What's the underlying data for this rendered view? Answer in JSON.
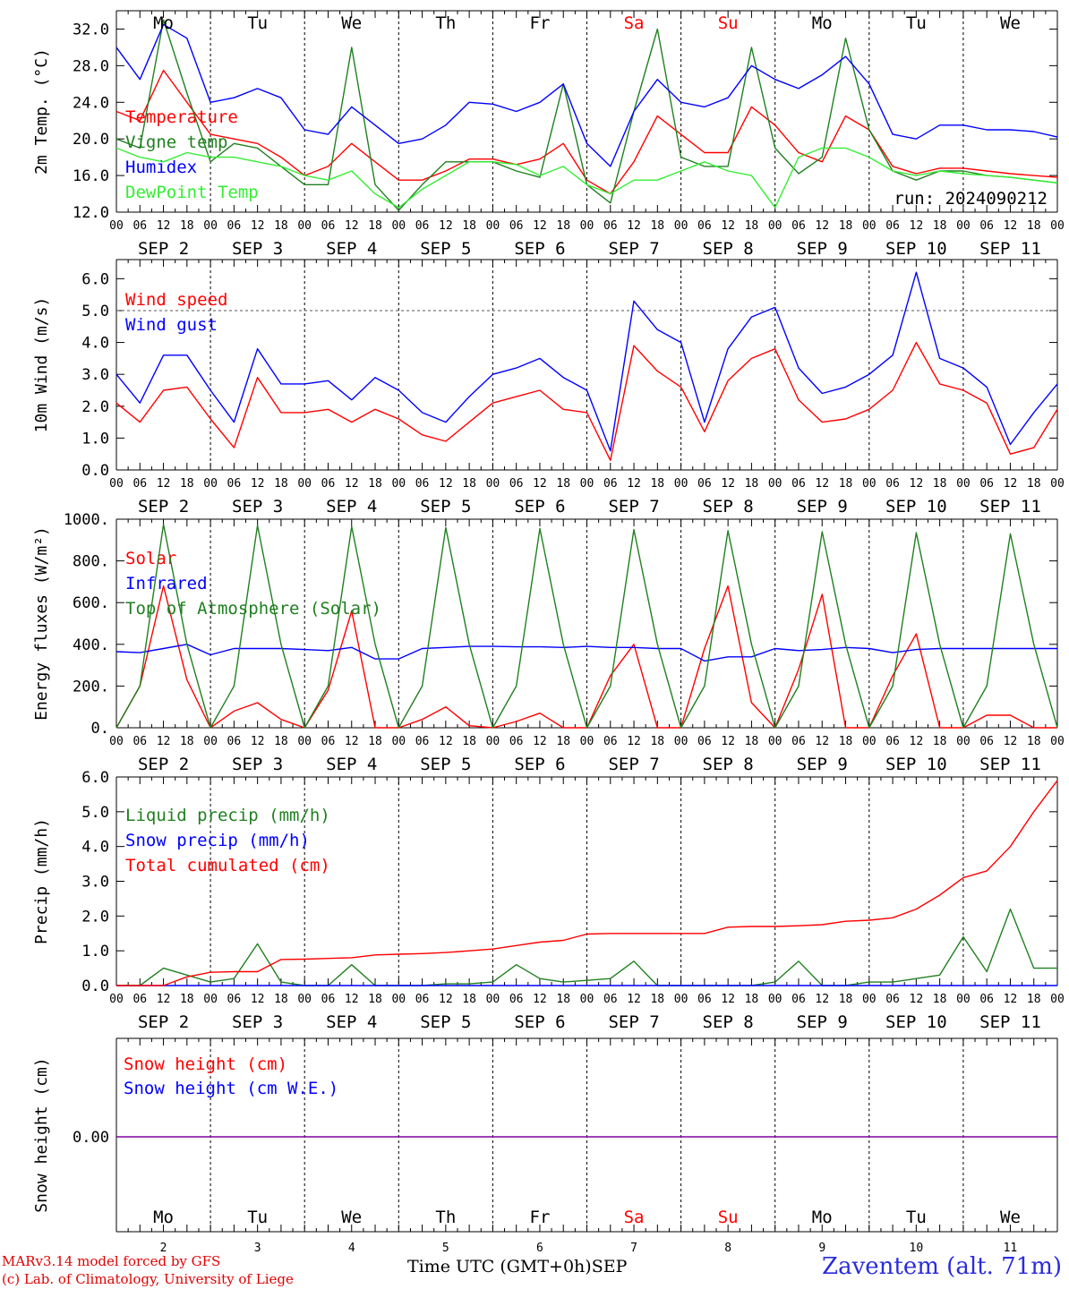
{
  "chart_data": [
    {
      "type": "line",
      "ylabel": "2m Temp. (°C)",
      "ylim": [
        12,
        34
      ],
      "yticks": [
        "12.0",
        "16.0",
        "20.0",
        "24.0",
        "28.0",
        "32.0"
      ],
      "annotation": "run: 2024090212",
      "x_hours": [
        0,
        6,
        12,
        18,
        24,
        30,
        36,
        42,
        48,
        54,
        60,
        66,
        72,
        78,
        84,
        90,
        96,
        102,
        108,
        114,
        120,
        126,
        132,
        138,
        144,
        150,
        156,
        162,
        168,
        174,
        180,
        186,
        192,
        198,
        204,
        210,
        216,
        222,
        228,
        234,
        240
      ],
      "series": [
        {
          "name": "Temperature",
          "color": "#ff0000",
          "values": [
            23,
            22,
            27.5,
            24,
            20.5,
            20,
            19.5,
            18,
            16,
            17,
            19.5,
            17.5,
            15.5,
            15.5,
            16.5,
            17.8,
            17.8,
            17.2,
            17.8,
            19.5,
            15.5,
            14,
            17.5,
            22.5,
            20.5,
            18.5,
            18.5,
            23.5,
            21.5,
            18.5,
            17.5,
            22.5,
            21,
            17,
            16.2,
            16.8,
            16.8,
            16.5,
            16.2,
            16,
            15.8
          ]
        },
        {
          "name": "Vigne temp",
          "color": "#208020",
          "values": [
            20,
            19,
            33,
            25,
            17.5,
            19.5,
            19,
            17,
            15,
            15,
            30,
            15,
            12.2,
            15,
            17.5,
            17.5,
            17.5,
            16.5,
            15.8,
            26,
            15,
            13,
            23,
            32,
            18,
            17,
            17,
            30,
            19,
            16.2,
            18,
            31,
            21,
            16.5,
            15.5,
            16.5,
            16.5,
            16,
            15.8,
            15.5,
            15.2
          ]
        },
        {
          "name": "Humidex",
          "color": "#0000ff",
          "values": [
            30,
            26.5,
            32.5,
            31,
            24,
            24.5,
            25.5,
            24.5,
            21,
            20.5,
            23.5,
            21.5,
            19.5,
            20,
            21.5,
            24,
            23.8,
            23,
            24,
            26,
            19.5,
            17,
            23,
            26.5,
            24,
            23.5,
            24.5,
            28,
            26.5,
            25.5,
            27,
            29,
            26,
            20.5,
            20,
            21.5,
            21.5,
            21,
            21,
            20.8,
            20.2
          ]
        },
        {
          "name": "DewPoint Temp",
          "color": "#33ee33",
          "values": [
            19,
            18,
            17.5,
            18.5,
            18,
            18,
            17.5,
            17,
            16,
            15.5,
            16.5,
            14,
            12.5,
            14.5,
            16,
            17.5,
            17.5,
            17.2,
            16,
            17,
            15,
            14,
            15.5,
            15.5,
            16.5,
            17.5,
            16.5,
            16,
            12.5,
            18,
            19,
            19,
            18,
            16.5,
            16,
            16.5,
            16.2,
            16,
            15.8,
            15.5,
            15.2
          ]
        }
      ]
    },
    {
      "type": "line",
      "ylabel": "10m Wind (m/s)",
      "ylim": [
        0,
        6.6
      ],
      "yticks": [
        "0.0",
        "1.0",
        "2.0",
        "3.0",
        "4.0",
        "5.0",
        "6.0"
      ],
      "x_hours": [
        0,
        6,
        12,
        18,
        24,
        30,
        36,
        42,
        48,
        54,
        60,
        66,
        72,
        78,
        84,
        90,
        96,
        102,
        108,
        114,
        120,
        126,
        132,
        138,
        144,
        150,
        156,
        162,
        168,
        174,
        180,
        186,
        192,
        198,
        204,
        210,
        216,
        222,
        228,
        234,
        240
      ],
      "series": [
        {
          "name": "Wind speed",
          "color": "#ff0000",
          "values": [
            2.1,
            1.5,
            2.5,
            2.6,
            1.6,
            0.7,
            2.9,
            1.8,
            1.8,
            1.9,
            1.5,
            1.9,
            1.6,
            1.1,
            0.9,
            1.5,
            2.1,
            2.3,
            2.5,
            1.9,
            1.8,
            0.3,
            3.9,
            3.1,
            2.6,
            1.2,
            2.8,
            3.5,
            3.8,
            2.2,
            1.5,
            1.6,
            1.9,
            2.5,
            4.0,
            2.7,
            2.5,
            2.1,
            0.5,
            0.7,
            1.9
          ]
        },
        {
          "name": "Wind gust",
          "color": "#0000ff",
          "values": [
            3.0,
            2.1,
            3.6,
            3.6,
            2.5,
            1.5,
            3.8,
            2.7,
            2.7,
            2.8,
            2.2,
            2.9,
            2.5,
            1.8,
            1.5,
            2.3,
            3.0,
            3.2,
            3.5,
            2.9,
            2.5,
            0.6,
            5.3,
            4.4,
            4.0,
            1.5,
            3.8,
            4.8,
            5.1,
            3.2,
            2.4,
            2.6,
            3.0,
            3.6,
            6.2,
            3.5,
            3.2,
            2.6,
            0.8,
            1.8,
            2.7
          ]
        }
      ],
      "reference_line": 5.0
    },
    {
      "type": "line",
      "ylabel": "Energy fluxes (W/m²)",
      "ylim": [
        0,
        1000
      ],
      "yticks": [
        "0.",
        "200.",
        "400.",
        "600.",
        "800.",
        "1000."
      ],
      "x_hours": [
        0,
        6,
        12,
        18,
        24,
        30,
        36,
        42,
        48,
        54,
        60,
        66,
        72,
        78,
        84,
        90,
        96,
        102,
        108,
        114,
        120,
        126,
        132,
        138,
        144,
        150,
        156,
        162,
        168,
        174,
        180,
        186,
        192,
        198,
        204,
        210,
        216,
        222,
        228,
        234,
        240
      ],
      "series": [
        {
          "name": "Solar",
          "color": "#ff0000",
          "values": [
            0,
            200,
            680,
            230,
            0,
            80,
            120,
            40,
            0,
            180,
            560,
            0,
            0,
            40,
            100,
            10,
            0,
            30,
            70,
            0,
            0,
            250,
            400,
            0,
            0,
            380,
            680,
            120,
            0,
            280,
            640,
            0,
            0,
            250,
            450,
            0,
            0,
            60,
            60,
            0,
            0
          ]
        },
        {
          "name": "Infrared",
          "color": "#0000ff",
          "values": [
            365,
            360,
            380,
            400,
            350,
            380,
            380,
            380,
            375,
            370,
            385,
            330,
            330,
            380,
            385,
            390,
            390,
            388,
            388,
            385,
            390,
            385,
            385,
            380,
            380,
            320,
            340,
            340,
            380,
            370,
            375,
            385,
            380,
            360,
            375,
            380,
            380,
            380,
            380,
            380,
            380
          ]
        },
        {
          "name": "Top of Atmosphere (Solar)",
          "color": "#208020",
          "values": [
            0,
            200,
            975,
            400,
            0,
            200,
            970,
            400,
            0,
            200,
            965,
            400,
            0,
            200,
            960,
            400,
            0,
            200,
            955,
            400,
            0,
            200,
            950,
            400,
            0,
            200,
            945,
            400,
            0,
            200,
            940,
            400,
            0,
            200,
            935,
            400,
            0,
            200,
            930,
            400,
            0
          ]
        }
      ]
    },
    {
      "type": "line",
      "ylabel": "Precip (mm/h)",
      "ylim": [
        0,
        6
      ],
      "yticks": [
        "0.0",
        "1.0",
        "2.0",
        "3.0",
        "4.0",
        "5.0",
        "6.0"
      ],
      "x_hours": [
        0,
        6,
        12,
        18,
        24,
        30,
        36,
        42,
        48,
        54,
        60,
        66,
        72,
        78,
        84,
        90,
        96,
        102,
        108,
        114,
        120,
        126,
        132,
        138,
        144,
        150,
        156,
        162,
        168,
        174,
        180,
        186,
        192,
        198,
        204,
        210,
        216,
        222,
        228,
        234,
        240
      ],
      "series": [
        {
          "name": "Liquid precip (mm/h)",
          "color": "#208020",
          "values": [
            0,
            0,
            0.5,
            0.3,
            0.1,
            0.2,
            1.2,
            0.1,
            0,
            0,
            0.6,
            0,
            0,
            0,
            0.05,
            0.05,
            0.1,
            0.6,
            0.2,
            0.1,
            0.15,
            0.2,
            0.7,
            0,
            0,
            0,
            0,
            0,
            0.1,
            0.7,
            0,
            0,
            0.1,
            0.1,
            0.2,
            0.3,
            1.4,
            0.4,
            2.2,
            0.5,
            0.5
          ]
        },
        {
          "name": "Snow precip (mm/h)",
          "color": "#0000ff",
          "values": [
            0,
            0,
            0,
            0,
            0,
            0,
            0,
            0,
            0,
            0,
            0,
            0,
            0,
            0,
            0,
            0,
            0,
            0,
            0,
            0,
            0,
            0,
            0,
            0,
            0,
            0,
            0,
            0,
            0,
            0,
            0,
            0,
            0,
            0,
            0,
            0,
            0,
            0,
            0,
            0,
            0
          ]
        },
        {
          "name": "Total cumulated (cm)",
          "color": "#ff0000",
          "values": [
            0,
            0,
            0,
            0.25,
            0.38,
            0.4,
            0.4,
            0.75,
            0.76,
            0.78,
            0.8,
            0.88,
            0.9,
            0.92,
            0.95,
            1.0,
            1.05,
            1.15,
            1.25,
            1.3,
            1.48,
            1.5,
            1.5,
            1.5,
            1.5,
            1.5,
            1.68,
            1.7,
            1.7,
            1.72,
            1.75,
            1.85,
            1.88,
            1.95,
            2.2,
            2.6,
            3.1,
            3.3,
            4.0,
            5.0,
            5.9
          ]
        }
      ]
    },
    {
      "type": "line",
      "ylabel": "Snow height (cm)",
      "yticks": [
        "0.00"
      ],
      "series": [
        {
          "name": "Snow height (cm)",
          "color": "#ff0000",
          "values": [
            0,
            0
          ]
        },
        {
          "name": "Snow height (cm W.E.)",
          "color": "#0000ff",
          "values": [
            0,
            0
          ]
        }
      ]
    }
  ],
  "xaxis": {
    "hour_labels": [
      "00",
      "06",
      "12",
      "18"
    ],
    "end_label": "00",
    "date_labels": [
      "SEP  2",
      "SEP  3",
      "SEP  4",
      "SEP  5",
      "SEP  6",
      "SEP  7",
      "SEP  8",
      "SEP  9",
      "SEP 10",
      "SEP 11"
    ],
    "weekdays": [
      "Mo",
      "Tu",
      "We",
      "Th",
      "Fr",
      "Sa",
      "Su",
      "Mo",
      "Tu",
      "We"
    ],
    "weekend_flags": [
      false,
      false,
      false,
      false,
      false,
      true,
      true,
      false,
      false,
      false
    ],
    "bottom_day_numbers": [
      "2",
      "3",
      "4",
      "5",
      "6",
      "7",
      "8",
      "9",
      "10",
      "11"
    ],
    "xlabel": "Time UTC (GMT+0h)",
    "month_label": "SEP"
  },
  "colors": {
    "red": "#ff0000",
    "green": "#208020",
    "blue": "#0000ff",
    "lightgreen": "#33ee33",
    "purple": "#8000a0"
  },
  "footer": {
    "model": "MARv3.14 model forced by GFS",
    "copyright": "(c) Lab. of Climatology, University of Liege",
    "station": "Zaventem (alt. 71m)"
  }
}
